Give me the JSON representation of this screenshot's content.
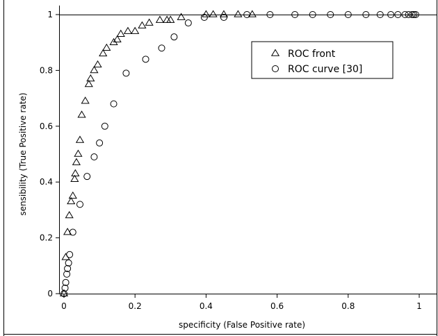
{
  "chart_data": {
    "type": "scatter",
    "xlabel": "specificity (False Positive rate)",
    "ylabel": "sensibility (True Positive rate)",
    "xlim": [
      0,
      1
    ],
    "ylim": [
      0,
      1
    ],
    "x_ticks": [
      "0",
      "0.2",
      "0.4",
      "0.6",
      "0.8",
      "1"
    ],
    "y_ticks": [
      "0",
      "0.2",
      "0.4",
      "0.6",
      "0.8",
      "1"
    ],
    "grid": false,
    "legend_position": "top-right",
    "series": [
      {
        "name": "ROC front",
        "marker": "triangle",
        "points": [
          [
            0.0,
            0.0
          ],
          [
            0.005,
            0.13
          ],
          [
            0.01,
            0.22
          ],
          [
            0.015,
            0.28
          ],
          [
            0.02,
            0.33
          ],
          [
            0.025,
            0.35
          ],
          [
            0.03,
            0.41
          ],
          [
            0.032,
            0.43
          ],
          [
            0.035,
            0.47
          ],
          [
            0.04,
            0.5
          ],
          [
            0.045,
            0.55
          ],
          [
            0.05,
            0.64
          ],
          [
            0.06,
            0.69
          ],
          [
            0.07,
            0.75
          ],
          [
            0.075,
            0.77
          ],
          [
            0.085,
            0.8
          ],
          [
            0.095,
            0.82
          ],
          [
            0.11,
            0.86
          ],
          [
            0.12,
            0.88
          ],
          [
            0.14,
            0.9
          ],
          [
            0.15,
            0.91
          ],
          [
            0.16,
            0.93
          ],
          [
            0.18,
            0.94
          ],
          [
            0.2,
            0.94
          ],
          [
            0.22,
            0.96
          ],
          [
            0.24,
            0.97
          ],
          [
            0.27,
            0.98
          ],
          [
            0.29,
            0.98
          ],
          [
            0.3,
            0.98
          ],
          [
            0.33,
            0.99
          ],
          [
            0.4,
            1.0
          ],
          [
            0.42,
            1.0
          ],
          [
            0.45,
            1.0
          ],
          [
            0.49,
            1.0
          ],
          [
            0.53,
            1.0
          ]
        ]
      },
      {
        "name": "ROC curve [30]",
        "marker": "circle",
        "points": [
          [
            0.0,
            0.0
          ],
          [
            0.003,
            0.02
          ],
          [
            0.005,
            0.04
          ],
          [
            0.008,
            0.07
          ],
          [
            0.01,
            0.09
          ],
          [
            0.013,
            0.11
          ],
          [
            0.016,
            0.14
          ],
          [
            0.025,
            0.22
          ],
          [
            0.045,
            0.32
          ],
          [
            0.065,
            0.42
          ],
          [
            0.085,
            0.49
          ],
          [
            0.1,
            0.54
          ],
          [
            0.115,
            0.6
          ],
          [
            0.14,
            0.68
          ],
          [
            0.175,
            0.79
          ],
          [
            0.23,
            0.84
          ],
          [
            0.275,
            0.88
          ],
          [
            0.31,
            0.92
          ],
          [
            0.35,
            0.97
          ],
          [
            0.395,
            0.99
          ],
          [
            0.45,
            0.99
          ],
          [
            0.515,
            1.0
          ],
          [
            0.58,
            1.0
          ],
          [
            0.65,
            1.0
          ],
          [
            0.7,
            1.0
          ],
          [
            0.75,
            1.0
          ],
          [
            0.8,
            1.0
          ],
          [
            0.85,
            1.0
          ],
          [
            0.89,
            1.0
          ],
          [
            0.92,
            1.0
          ],
          [
            0.94,
            1.0
          ],
          [
            0.96,
            1.0
          ],
          [
            0.97,
            1.0
          ],
          [
            0.98,
            1.0
          ],
          [
            0.985,
            1.0
          ],
          [
            0.99,
            1.0
          ]
        ]
      }
    ]
  }
}
